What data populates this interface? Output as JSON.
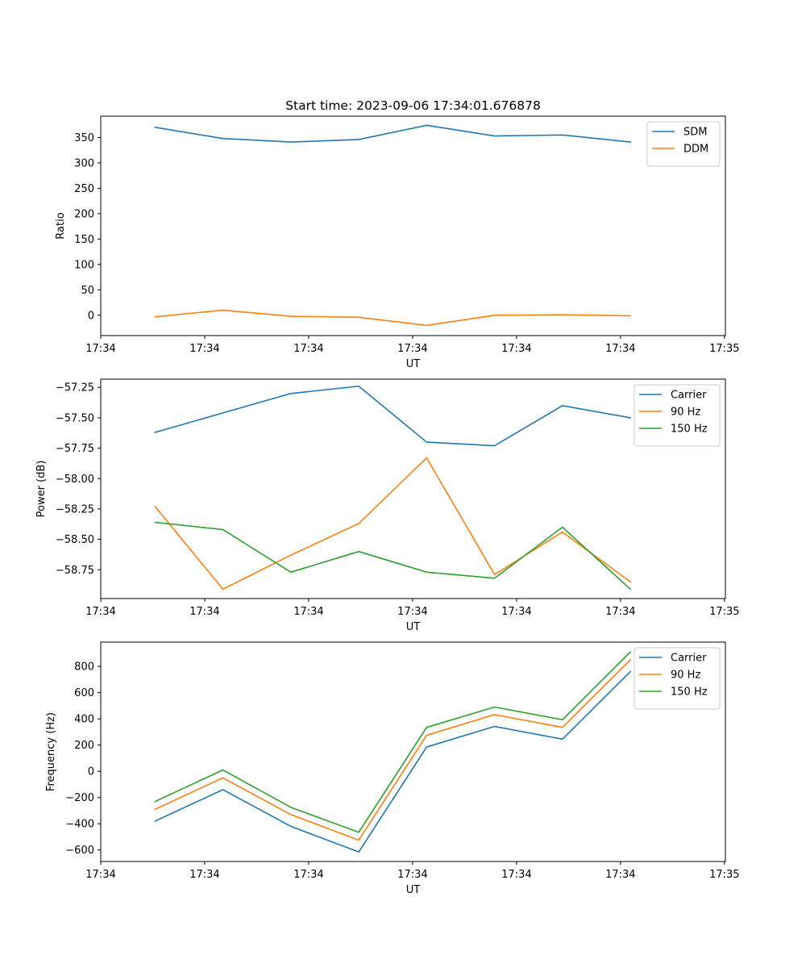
{
  "chart_data": [
    {
      "type": "line",
      "title": "Start time: 2023-09-06 17:34:01.676878",
      "xlabel": "UT",
      "ylabel": "Ratio",
      "x": [
        1,
        2,
        3,
        4,
        5,
        6,
        7,
        8
      ],
      "xlim": [
        0.2,
        9.4
      ],
      "xticks": [
        0.2,
        1.731,
        3.262,
        4.793,
        6.324,
        7.855,
        9.386
      ],
      "xtick_labels": [
        "17:34",
        "17:34",
        "17:34",
        "17:34",
        "17:34",
        "17:34",
        "17:35"
      ],
      "ylim": [
        -40,
        392
      ],
      "yticks": [
        0,
        50,
        100,
        150,
        200,
        250,
        300,
        350
      ],
      "ytick_labels": [
        "0",
        "50",
        "100",
        "150",
        "200",
        "250",
        "300",
        "350"
      ],
      "series": [
        {
          "name": "SDM",
          "color": "#1f77b4",
          "values": [
            370,
            348,
            341,
            346,
            374,
            353,
            355,
            341
          ]
        },
        {
          "name": "DDM",
          "color": "#ff7f0e",
          "values": [
            -3,
            10,
            -2,
            -4,
            -20,
            0,
            1,
            -1
          ]
        }
      ],
      "legend": "top-right",
      "grid": false
    },
    {
      "type": "line",
      "title": "",
      "xlabel": "UT",
      "ylabel": "Power (dB)",
      "x": [
        1,
        2,
        3,
        4,
        5,
        6,
        7,
        8
      ],
      "xlim": [
        0.2,
        9.4
      ],
      "xticks": [
        0.2,
        1.731,
        3.262,
        4.793,
        6.324,
        7.855,
        9.386
      ],
      "xtick_labels": [
        "17:34",
        "17:34",
        "17:34",
        "17:34",
        "17:34",
        "17:34",
        "17:35"
      ],
      "ylim": [
        -58.987,
        -57.182
      ],
      "yticks": [
        -58.75,
        -58.5,
        -58.25,
        -58.0,
        -57.75,
        -57.5,
        -57.25
      ],
      "ytick_labels": [
        "−58.75",
        "−58.50",
        "−58.25",
        "−58.00",
        "−57.75",
        "−57.50",
        "−57.25"
      ],
      "series": [
        {
          "name": "Carrier",
          "color": "#1f77b4",
          "values": [
            -57.62,
            -57.46,
            -57.3,
            -57.24,
            -57.7,
            -57.73,
            -57.4,
            -57.5
          ]
        },
        {
          "name": "90 Hz",
          "color": "#ff7f0e",
          "values": [
            -58.23,
            -58.91,
            -58.63,
            -58.37,
            -57.83,
            -58.79,
            -58.44,
            -58.85
          ]
        },
        {
          "name": "150 Hz",
          "color": "#2ca02c",
          "values": [
            -58.36,
            -58.42,
            -58.77,
            -58.6,
            -58.77,
            -58.82,
            -58.4,
            -58.91
          ]
        }
      ],
      "legend": "top-right",
      "grid": false
    },
    {
      "type": "line",
      "title": "",
      "xlabel": "UT",
      "ylabel": "Frequency (Hz)",
      "x": [
        1,
        2,
        3,
        4,
        5,
        6,
        7,
        8
      ],
      "xlim": [
        0.2,
        9.4
      ],
      "xticks": [
        0.2,
        1.731,
        3.262,
        4.793,
        6.324,
        7.855,
        9.386
      ],
      "xtick_labels": [
        "17:34",
        "17:34",
        "17:34",
        "17:34",
        "17:34",
        "17:34",
        "17:35"
      ],
      "ylim": [
        -688,
        985
      ],
      "yticks": [
        -600,
        -400,
        -200,
        0,
        200,
        400,
        600,
        800
      ],
      "ytick_labels": [
        "−600",
        "−400",
        "−200",
        "0",
        "200",
        "400",
        "600",
        "800"
      ],
      "series": [
        {
          "name": "Carrier",
          "color": "#1f77b4",
          "values": [
            -380,
            -140,
            -420,
            -615,
            185,
            342,
            245,
            760
          ]
        },
        {
          "name": "90 Hz",
          "color": "#ff7f0e",
          "values": [
            -290,
            -50,
            -330,
            -525,
            275,
            432,
            335,
            850
          ]
        },
        {
          "name": "150 Hz",
          "color": "#2ca02c",
          "values": [
            -230,
            10,
            -275,
            -465,
            335,
            490,
            393,
            910
          ]
        }
      ],
      "legend": "top-right",
      "grid": false
    }
  ]
}
